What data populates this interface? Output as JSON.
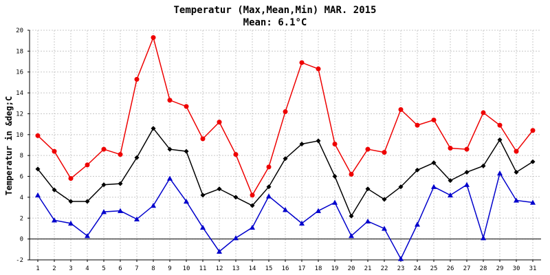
{
  "chart_data": {
    "type": "line",
    "title": "Temperatur (Max,Mean,Min) MAR. 2015",
    "subtitle": "Mean: 6.1°C",
    "ylabel": "Temperatur in &deg;C",
    "xlabel": "",
    "ylim": [
      -2,
      20
    ],
    "yticks": [
      -2,
      0,
      2,
      4,
      6,
      8,
      10,
      12,
      14,
      16,
      18,
      20
    ],
    "x": [
      1,
      2,
      3,
      4,
      5,
      6,
      7,
      8,
      9,
      10,
      11,
      12,
      13,
      14,
      15,
      16,
      17,
      18,
      19,
      20,
      21,
      22,
      23,
      24,
      25,
      26,
      27,
      28,
      29,
      30,
      31
    ],
    "grid": true,
    "series": [
      {
        "color": "#ee0000",
        "marker": "circle",
        "values": [
          9.9,
          8.4,
          5.8,
          7.1,
          8.6,
          8.1,
          15.3,
          19.3,
          13.3,
          12.7,
          9.6,
          11.2,
          8.1,
          4.2,
          6.9,
          12.2,
          16.9,
          16.3,
          9.1,
          6.2,
          8.6,
          8.3,
          12.4,
          10.9,
          11.4,
          8.7,
          8.6,
          12.1,
          10.9,
          8.4,
          10.4
        ]
      },
      {
        "color": "#000000",
        "marker": "diamond",
        "values": [
          6.7,
          4.7,
          3.6,
          3.6,
          5.2,
          5.3,
          7.8,
          10.6,
          8.6,
          8.4,
          4.2,
          4.8,
          4.0,
          3.2,
          5.0,
          7.7,
          9.1,
          9.4,
          6.0,
          2.2,
          4.8,
          3.8,
          5.0,
          6.6,
          7.3,
          5.6,
          6.4,
          7.0,
          9.5,
          6.4,
          7.4
        ]
      },
      {
        "color": "#0000cc",
        "marker": "triangle",
        "values": [
          4.2,
          1.8,
          1.5,
          0.3,
          2.6,
          2.7,
          1.9,
          3.2,
          5.8,
          3.6,
          1.1,
          -1.2,
          0.1,
          1.1,
          4.1,
          2.8,
          1.5,
          2.7,
          3.5,
          0.3,
          1.7,
          1.0,
          -1.9,
          1.4,
          5.0,
          4.2,
          5.2,
          0.1,
          6.3,
          3.7,
          3.5
        ]
      }
    ]
  }
}
